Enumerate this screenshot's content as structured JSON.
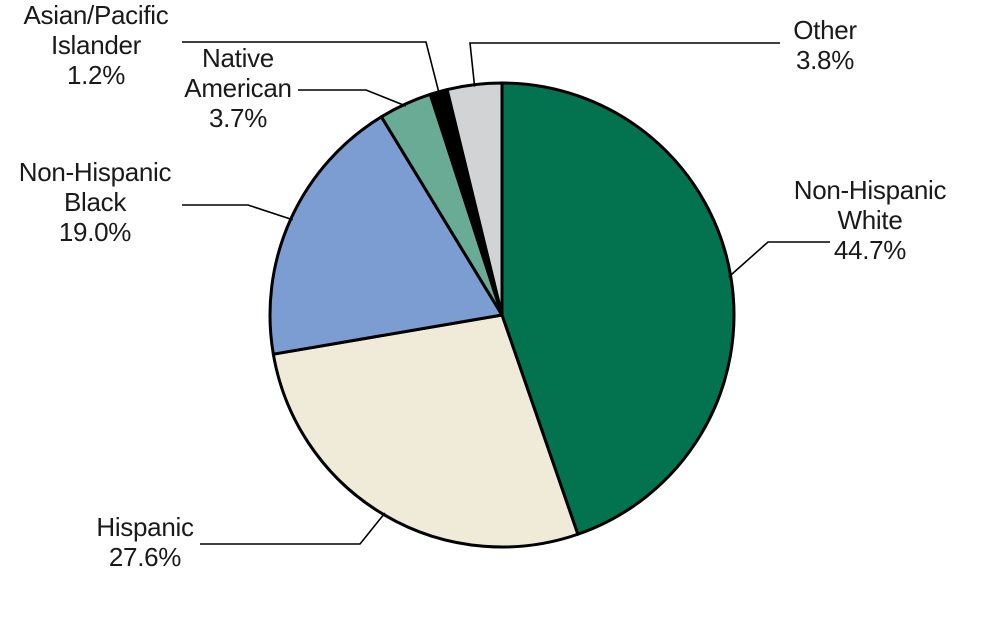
{
  "chart_data": {
    "type": "pie",
    "title": "",
    "slices": [
      {
        "name": "Non-Hispanic White",
        "value": 44.7,
        "color": "#03734f",
        "label_lines": [
          "Non-Hispanic",
          "White"
        ],
        "value_label": "44.7%"
      },
      {
        "name": "Hispanic",
        "value": 27.6,
        "color": "#f0ead9",
        "label_lines": [
          "Hispanic"
        ],
        "value_label": "27.6%"
      },
      {
        "name": "Non-Hispanic Black",
        "value": 19.0,
        "color": "#7b9dd1",
        "label_lines": [
          "Non-Hispanic",
          "Black"
        ],
        "value_label": "19.0%"
      },
      {
        "name": "Native American",
        "value": 3.7,
        "color": "#6aab96",
        "label_lines": [
          "Native",
          "American"
        ],
        "value_label": "3.7%"
      },
      {
        "name": "Asian/Pacific Islander",
        "value": 1.2,
        "color": "#000000",
        "label_lines": [
          "Asian/Pacific",
          "Islander"
        ],
        "value_label": "1.2%"
      },
      {
        "name": "Other",
        "value": 3.8,
        "color": "#d1d3d4",
        "label_lines": [
          "Other"
        ],
        "value_label": "3.8%"
      }
    ],
    "start": "top",
    "direction": "clockwise",
    "legend": "none"
  }
}
